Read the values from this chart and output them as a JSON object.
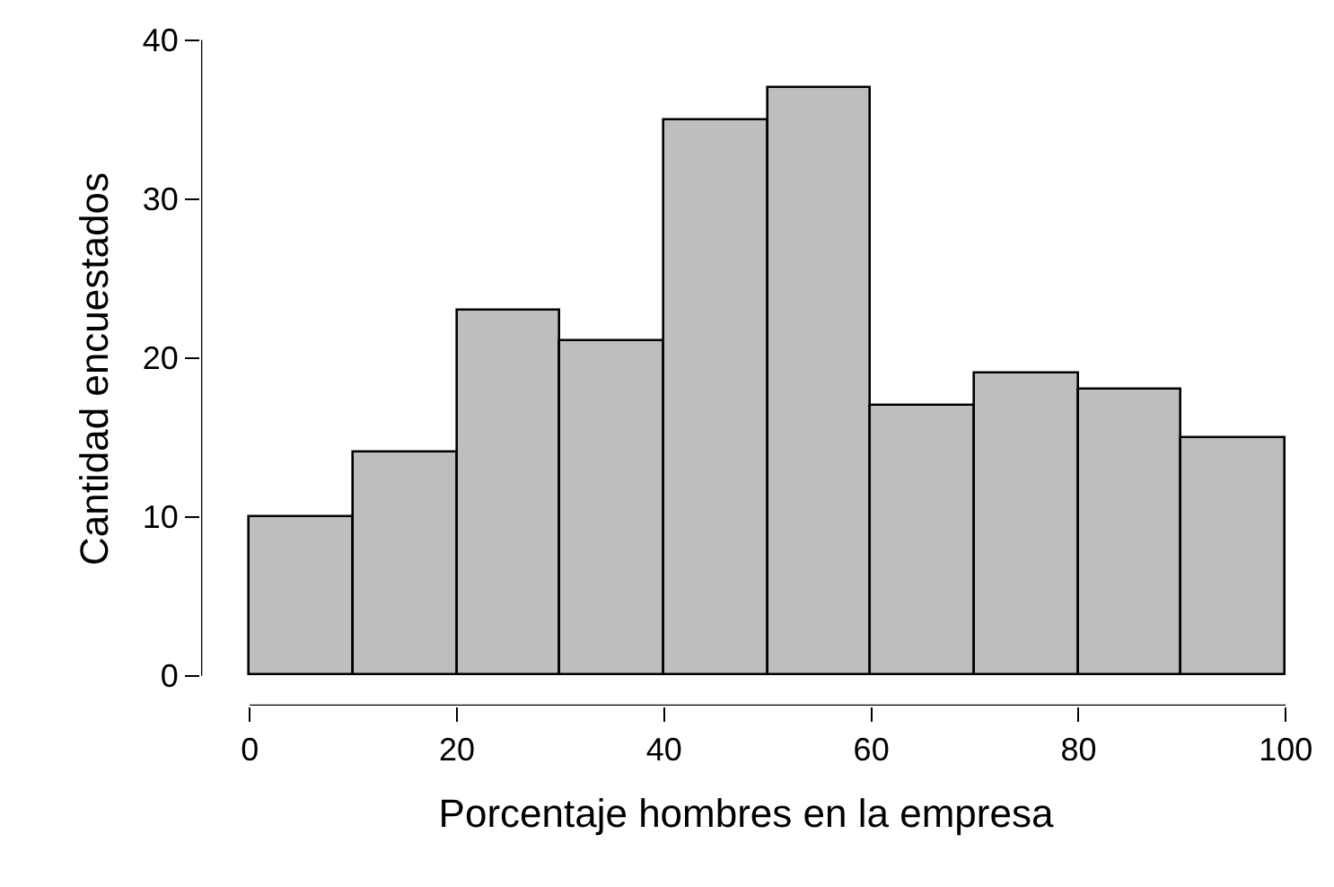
{
  "chart_data": {
    "type": "histogram",
    "xlabel": "Porcentaje hombres en la empresa",
    "ylabel": "Cantidad encuestados",
    "bins": [
      0,
      10,
      20,
      30,
      40,
      50,
      60,
      70,
      80,
      90,
      100
    ],
    "values": [
      10,
      14,
      23,
      21,
      35,
      37,
      17,
      19,
      18,
      15
    ],
    "color": "#bebebe",
    "xlim": [
      0,
      100
    ],
    "xticks": [
      0,
      20,
      40,
      60,
      80,
      100
    ],
    "ylim": [
      0,
      40
    ],
    "yticks": [
      0,
      10,
      20,
      30,
      40
    ]
  }
}
